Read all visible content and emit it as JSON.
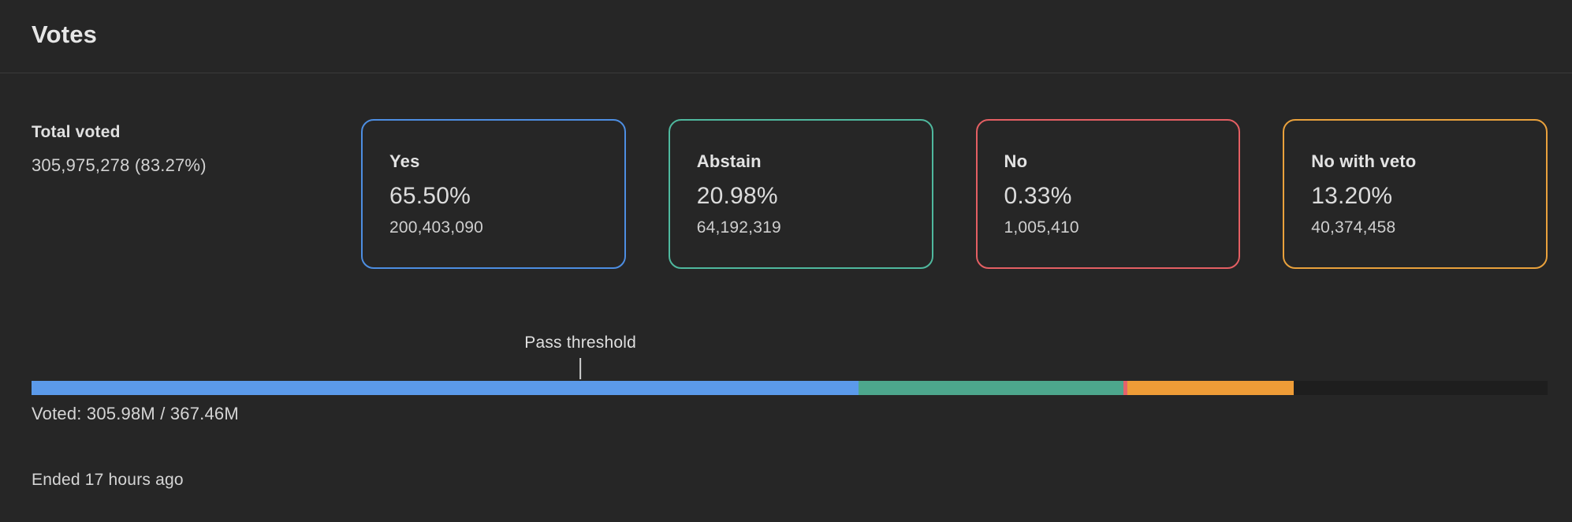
{
  "panel": {
    "title": "Votes"
  },
  "total": {
    "label": "Total voted",
    "value": "305,975,278 (83.27%)"
  },
  "options": [
    {
      "label": "Yes",
      "percent": "65.50%",
      "amount": "200,403,090",
      "border_color": "#4d8ee2",
      "bar_color": "#5b9aea",
      "bar_share": 54.54
    },
    {
      "label": "Abstain",
      "percent": "20.98%",
      "amount": "64,192,319",
      "border_color": "#4fb89e",
      "bar_color": "#4da78d",
      "bar_share": 17.47
    },
    {
      "label": "No",
      "percent": "0.33%",
      "amount": "1,005,410",
      "border_color": "#e45f63",
      "bar_color": "#e5626b",
      "bar_share": 0.27
    },
    {
      "label": "No with veto",
      "percent": "13.20%",
      "amount": "40,374,458",
      "border_color": "#e9a13c",
      "bar_color": "#ee9c37",
      "bar_share": 10.99
    }
  ],
  "bar": {
    "threshold_label": "Pass threshold",
    "threshold_position_pct": 36.2,
    "voted_summary": "Voted: 305.98M / 367.46M",
    "track_color": "#1e1e1e"
  },
  "footer": {
    "status": "Ended 17 hours ago"
  }
}
